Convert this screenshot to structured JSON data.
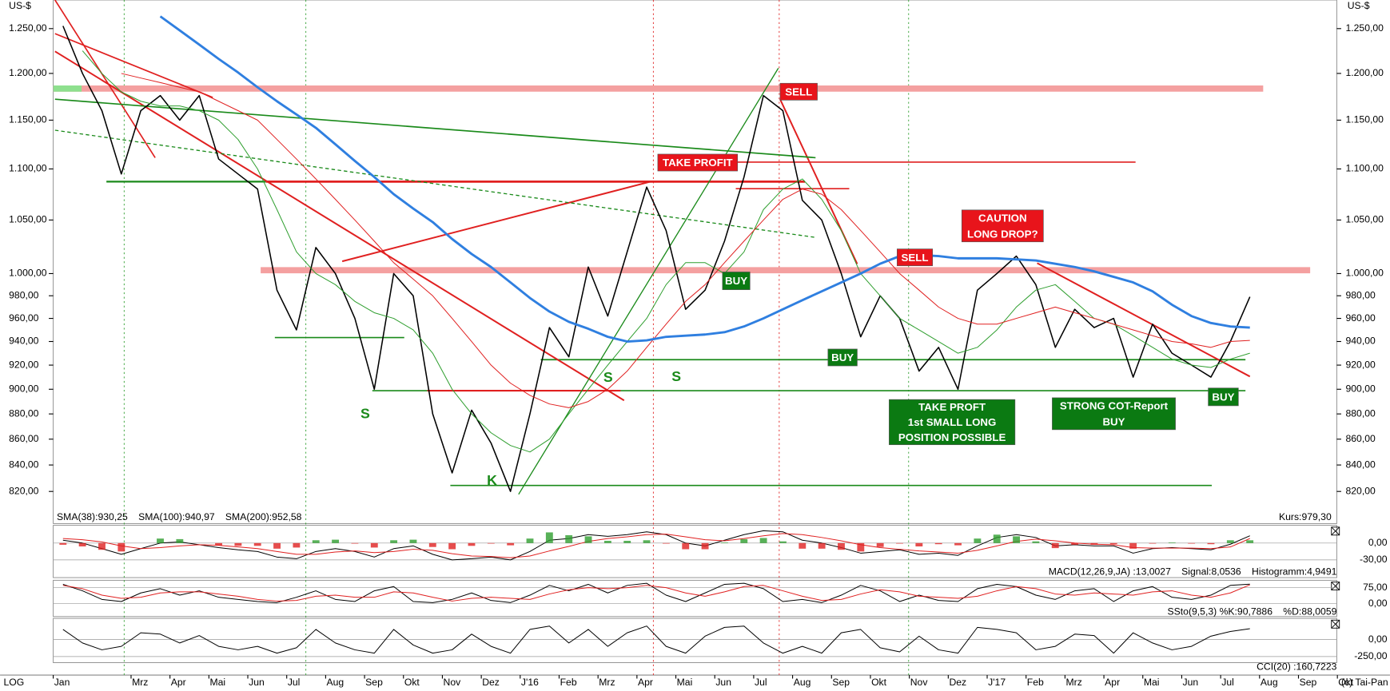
{
  "chart_data": [
    {
      "type": "line",
      "ylabel": "US-$",
      "log_scale": true,
      "ylim": [
        797,
        1283
      ],
      "yticks": [
        {
          "value": 820,
          "label": "820,00"
        },
        {
          "value": 840,
          "label": "840,00"
        },
        {
          "value": 860,
          "label": "860,00"
        },
        {
          "value": 880,
          "label": "880,00"
        },
        {
          "value": 900,
          "label": "900,00"
        },
        {
          "value": 920,
          "label": "920,00"
        },
        {
          "value": 940,
          "label": "940,00"
        },
        {
          "value": 960,
          "label": "960,00"
        },
        {
          "value": 980,
          "label": "980,00"
        },
        {
          "value": 1000,
          "label": "1.000,00"
        },
        {
          "value": 1050,
          "label": "1.050,00"
        },
        {
          "value": 1100,
          "label": "1.100,00"
        },
        {
          "value": 1150,
          "label": "1.150,00"
        },
        {
          "value": 1200,
          "label": "1.200,00"
        },
        {
          "value": 1250,
          "label": "1.250,00"
        }
      ],
      "categories": [
        "Jan",
        null,
        null,
        null,
        "Mrz",
        null,
        "Apr",
        null,
        "Mai",
        null,
        "Jun",
        null,
        "Jul",
        null,
        "Aug",
        null,
        "Sep",
        null,
        "Okt",
        null,
        "Nov",
        null,
        "Dez",
        null,
        "J'16",
        null,
        "Feb",
        null,
        "Mrz",
        null,
        "Apr",
        null,
        "Mai",
        null,
        "Jun",
        null,
        "Jul",
        null,
        "Aug",
        null,
        "Sep",
        null,
        "Okt",
        null,
        "Nov",
        null,
        "Dez",
        null,
        "J'17",
        null,
        "Feb",
        null,
        "Mrz",
        null,
        "Apr",
        null,
        "Mai",
        null,
        "Jun",
        null,
        "Jul",
        null,
        "Aug",
        null,
        "Sep",
        null,
        "Okt",
        null
      ],
      "last_value_label": "Kurs:979,30",
      "scale_label": "LOG",
      "source": "(c) Tai-Pan",
      "series": [
        {
          "color": "#000000",
          "values": [
            1253,
            1200,
            1160,
            1095,
            1160,
            1176,
            1150,
            1176,
            1110,
            1095,
            1080,
            985,
            950,
            1024,
            1000,
            960,
            900,
            1000,
            980,
            880,
            834,
            883,
            857,
            820,
            880,
            952,
            927,
            1006,
            962,
            1020,
            1082,
            1040,
            968,
            985,
            1030,
            1092,
            1176,
            1160,
            1069,
            1050,
            1000,
            944,
            980,
            960,
            915,
            935,
            900,
            985,
            1000,
            1016,
            990,
            935,
            968,
            952,
            960,
            910,
            955,
            930,
            920,
            910,
            940,
            979,
            null,
            null,
            null,
            null,
            null,
            null
          ]
        },
        {
          "name": "SMA(38):930,25",
          "color": "#2e9e2e",
          "values": [
            null,
            1225,
            1200,
            1180,
            1170,
            1165,
            1165,
            1160,
            1150,
            1130,
            1100,
            1060,
            1020,
            1000,
            990,
            975,
            965,
            960,
            950,
            930,
            900,
            880,
            865,
            855,
            850,
            860,
            880,
            900,
            920,
            940,
            960,
            990,
            1010,
            1010,
            1000,
            1020,
            1060,
            1080,
            1090,
            1070,
            1040,
            1000,
            980,
            960,
            950,
            940,
            930,
            935,
            950,
            970,
            985,
            990,
            975,
            960,
            955,
            945,
            935,
            925,
            920,
            918,
            925,
            930,
            null,
            null,
            null,
            null,
            null,
            null
          ]
        },
        {
          "name": "SMA(100):940,97",
          "color": "#e02020",
          "values": [
            null,
            null,
            null,
            1200,
            1195,
            1190,
            1185,
            1180,
            1170,
            1160,
            1150,
            1130,
            1110,
            1090,
            1070,
            1050,
            1030,
            1010,
            995,
            980,
            960,
            940,
            920,
            905,
            895,
            888,
            885,
            890,
            900,
            915,
            935,
            955,
            975,
            990,
            1010,
            1030,
            1050,
            1070,
            1080,
            1075,
            1060,
            1040,
            1020,
            1000,
            985,
            970,
            960,
            955,
            955,
            960,
            965,
            970,
            965,
            960,
            955,
            950,
            945,
            940,
            938,
            935,
            940,
            941,
            null,
            null,
            null,
            null,
            null,
            null
          ]
        },
        {
          "name": "SMA(200):952,58",
          "color": "#2f7fe0",
          "values": [
            null,
            null,
            null,
            null,
            null,
            1264,
            1248,
            1232,
            1216,
            1201,
            1185,
            1170,
            1156,
            1142,
            1125,
            1108,
            1092,
            1075,
            1061,
            1048,
            1032,
            1018,
            1006,
            992,
            978,
            966,
            957,
            951,
            944,
            940,
            941,
            944,
            945,
            946,
            948,
            953,
            960,
            968,
            976,
            984,
            992,
            1000,
            1009,
            1016,
            1017,
            1016,
            1014,
            1014,
            1014,
            1013,
            1012,
            1009,
            1006,
            1002,
            997,
            992,
            984,
            972,
            962,
            956,
            953,
            952,
            null,
            null,
            null,
            null,
            null,
            null
          ]
        }
      ],
      "annotations": [
        {
          "text": [
            "SELL"
          ],
          "color": "#e8141b"
        },
        {
          "text": [
            "TAKE PROFIT"
          ],
          "color": "#e8141b"
        },
        {
          "text": [
            "BUY"
          ],
          "color": "#0b7a12"
        },
        {
          "text": [
            "SELL"
          ],
          "color": "#e8141b"
        },
        {
          "text": [
            "CAUTION",
            "LONG DROP?"
          ],
          "color": "#e8141b"
        },
        {
          "text": [
            "BUY"
          ],
          "color": "#0b7a12"
        },
        {
          "text": [
            "TAKE PROFT",
            "1st SMALL LONG",
            "POSITION POSSIBLE"
          ],
          "color": "#0b7a12"
        },
        {
          "text": [
            "STRONG COT-Report",
            "BUY"
          ],
          "color": "#0b7a12"
        },
        {
          "text": [
            "BUY"
          ],
          "color": "#0b7a12"
        }
      ],
      "letters": [
        "S",
        "S",
        "S",
        "K"
      ]
    },
    {
      "type": "line",
      "ylim": [
        -60,
        30
      ],
      "yticks": [
        {
          "value": 0,
          "label": "0,00"
        },
        {
          "value": -30,
          "label": "-30,00"
        }
      ],
      "series": [
        {
          "name": "MACD(12,26,9,JA) :13,0027",
          "color": "#000000",
          "values": [
            5,
            0,
            -10,
            -20,
            -10,
            0,
            2,
            -3,
            -8,
            -12,
            -15,
            -25,
            -28,
            -15,
            -10,
            -15,
            -25,
            -10,
            -5,
            -20,
            -30,
            -28,
            -25,
            -30,
            -15,
            5,
            8,
            15,
            12,
            15,
            20,
            15,
            0,
            -5,
            5,
            15,
            22,
            20,
            5,
            0,
            -8,
            -18,
            -15,
            -12,
            -20,
            -18,
            -22,
            -5,
            10,
            15,
            10,
            -5,
            -3,
            -5,
            -5,
            -18,
            -10,
            -8,
            -10,
            -12,
            -2,
            13.0027,
            null,
            null,
            null,
            null,
            null,
            null
          ]
        },
        {
          "name": "Signal:8,0536",
          "color": "#e02020",
          "values": [
            8,
            6,
            2,
            -5,
            -10,
            -8,
            -5,
            -3,
            -4,
            -7,
            -10,
            -15,
            -20,
            -20,
            -16,
            -14,
            -17,
            -15,
            -11,
            -13,
            -19,
            -23,
            -24,
            -26,
            -23,
            -14,
            -6,
            3,
            8,
            11,
            15,
            16,
            11,
            6,
            4,
            8,
            13,
            17,
            15,
            10,
            4,
            -3,
            -8,
            -11,
            -14,
            -16,
            -18,
            -13,
            -5,
            3,
            7,
            4,
            0,
            -2,
            -3,
            -8,
            -9,
            -9,
            -9,
            -10,
            -7,
            8.0536,
            null,
            null,
            null,
            null,
            null,
            null
          ]
        },
        {
          "name": "Histogramm:4,9491",
          "kind": "histogram",
          "color": "#2e9e2e",
          "negative_color": "#e02020",
          "values": [
            -3,
            -6,
            -12,
            -15,
            0,
            8,
            7,
            0,
            -4,
            -5,
            -5,
            -10,
            -8,
            5,
            6,
            -1,
            -8,
            5,
            6,
            -7,
            -11,
            -5,
            -1,
            -4,
            8,
            19,
            14,
            12,
            4,
            4,
            5,
            -1,
            -11,
            -11,
            1,
            7,
            9,
            3,
            -10,
            -10,
            -12,
            -15,
            -7,
            -1,
            -6,
            -2,
            -4,
            8,
            15,
            12,
            3,
            -9,
            -3,
            -3,
            -2,
            -10,
            -1,
            1,
            -1,
            -2,
            5,
            4.9491,
            null,
            null,
            null,
            null,
            null,
            null
          ]
        }
      ]
    },
    {
      "type": "line",
      "ylim": [
        -60,
        105
      ],
      "yticks": [
        {
          "value": 75,
          "label": "75,00"
        },
        {
          "value": 0,
          "label": "0,00"
        }
      ],
      "series": [
        {
          "name": "SSto(9,5,3) %K:90,7886",
          "color": "#000000",
          "values": [
            90,
            60,
            20,
            10,
            50,
            70,
            40,
            60,
            30,
            20,
            10,
            5,
            30,
            60,
            20,
            10,
            60,
            80,
            10,
            5,
            20,
            50,
            15,
            5,
            40,
            85,
            60,
            90,
            50,
            85,
            95,
            40,
            10,
            50,
            90,
            95,
            70,
            10,
            20,
            5,
            40,
            85,
            60,
            10,
            40,
            15,
            10,
            70,
            90,
            80,
            40,
            20,
            60,
            70,
            10,
            60,
            80,
            30,
            20,
            40,
            85,
            90.7886,
            null,
            null,
            null,
            null,
            null,
            null
          ]
        },
        {
          "name": "%D:88,0059",
          "color": "#e02020",
          "values": [
            85,
            70,
            40,
            25,
            30,
            50,
            55,
            55,
            45,
            35,
            20,
            12,
            15,
            35,
            40,
            30,
            30,
            55,
            50,
            30,
            12,
            25,
            30,
            25,
            20,
            45,
            65,
            75,
            70,
            75,
            85,
            75,
            50,
            35,
            55,
            80,
            85,
            60,
            35,
            15,
            20,
            45,
            65,
            55,
            35,
            30,
            25,
            35,
            60,
            80,
            70,
            45,
            40,
            50,
            45,
            40,
            55,
            60,
            40,
            30,
            50,
            88.0059,
            null,
            null,
            null,
            null,
            null,
            null
          ]
        }
      ]
    },
    {
      "type": "line",
      "ylim": [
        -340,
        300
      ],
      "yticks": [
        {
          "value": 0,
          "label": "0,00"
        },
        {
          "value": -250,
          "label": "-250,00"
        }
      ],
      "series": [
        {
          "name": "CCI(20) :160,7223",
          "color": "#000000",
          "values": [
            150,
            -50,
            -150,
            -100,
            100,
            80,
            -50,
            60,
            -100,
            -150,
            -100,
            -200,
            -120,
            150,
            -50,
            -150,
            -200,
            150,
            -80,
            -200,
            -150,
            80,
            -100,
            -200,
            150,
            200,
            -50,
            150,
            -100,
            100,
            200,
            -100,
            -200,
            50,
            180,
            200,
            -50,
            -200,
            -100,
            -200,
            100,
            150,
            -120,
            -180,
            50,
            -150,
            -200,
            180,
            150,
            100,
            -150,
            -100,
            80,
            60,
            -200,
            100,
            -50,
            -150,
            -100,
            50,
            120,
            160.7223,
            null,
            null,
            null,
            null,
            null,
            null
          ]
        }
      ]
    }
  ]
}
